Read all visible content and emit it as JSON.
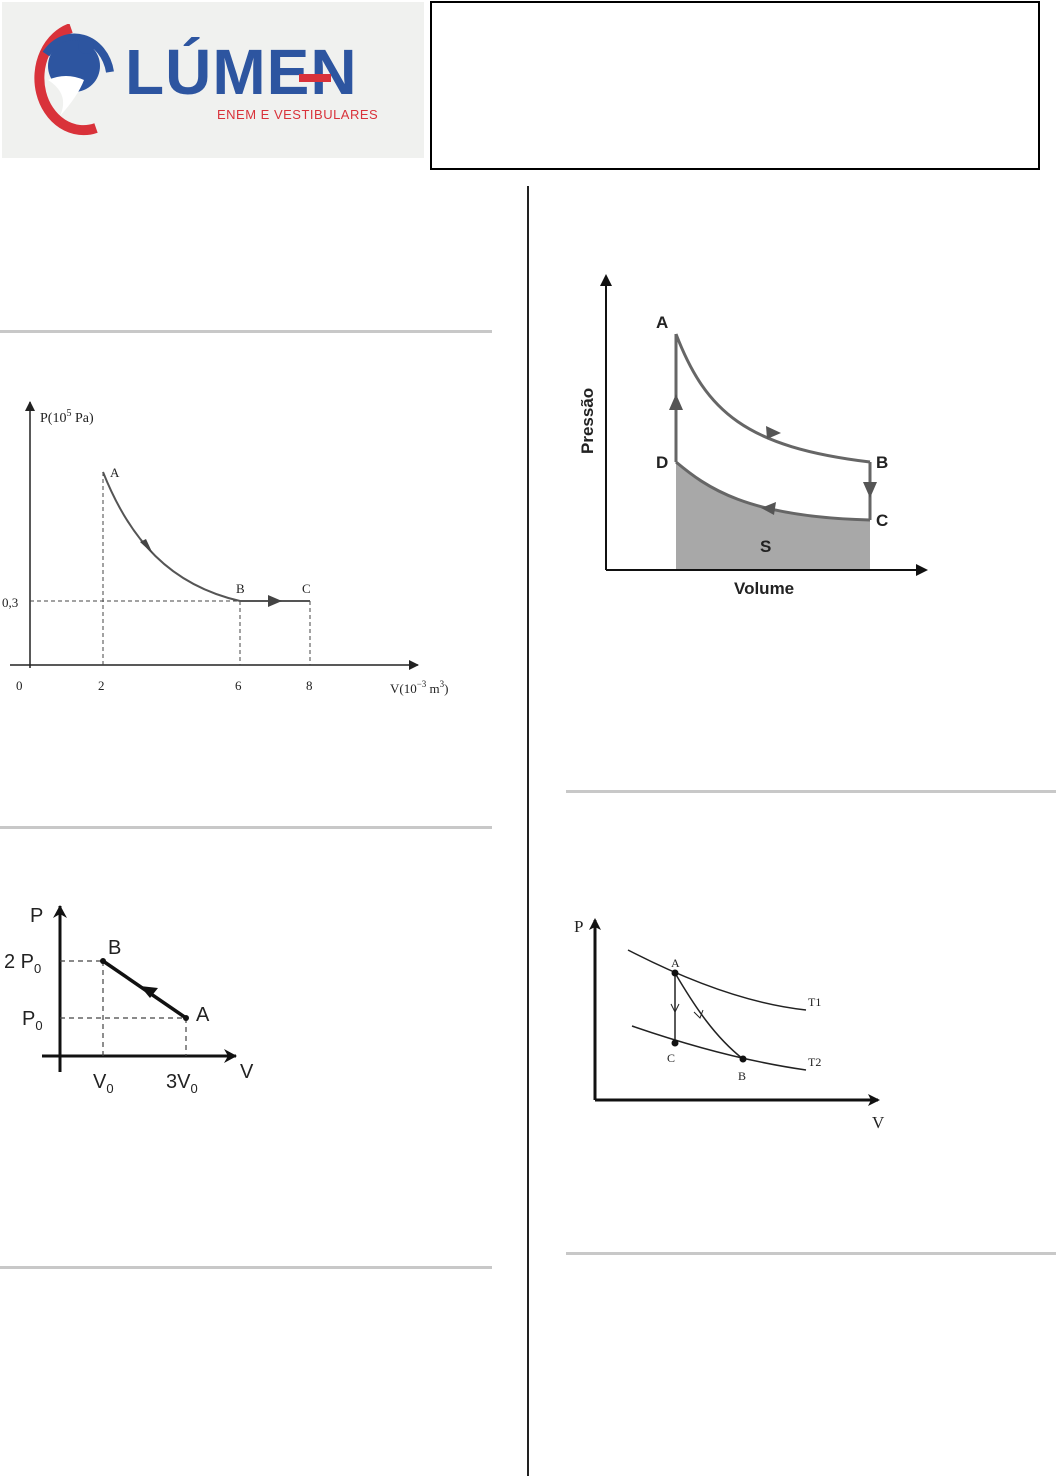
{
  "header": {
    "logo_word": "LÚMEN",
    "logo_tagline": "ENEM E VESTIBULARES",
    "brand_blue": "#2d55a0",
    "brand_red": "#d9323a"
  },
  "graph1": {
    "y_axis_label": "P(10",
    "y_axis_exp": "5",
    "y_axis_unit": " Pa)",
    "x_axis_label": "V(10",
    "x_axis_exp": "−3",
    "x_axis_unit": " m",
    "x_axis_unit_exp": "3",
    "x_axis_close": ")",
    "origin": "0",
    "x_ticks": [
      "2",
      "6",
      "8"
    ],
    "y_tick": "0,3",
    "points": [
      "A",
      "B",
      "C"
    ]
  },
  "graph2": {
    "y_axis": "P",
    "x_axis": "V",
    "y_tick_top_coef": "2 P",
    "y_tick_top_sub": "0",
    "y_tick_low": "P",
    "y_tick_low_sub": "0",
    "x_tick_left": "V",
    "x_tick_left_sub": "0",
    "x_tick_right_coef": "3V",
    "x_tick_right_sub": "0",
    "points": [
      "B",
      "A"
    ]
  },
  "graph3": {
    "y_axis": "Pressão",
    "x_axis": "Volume",
    "points": [
      "A",
      "B",
      "C",
      "D"
    ],
    "area_label": "S"
  },
  "graph4": {
    "y_axis": "P",
    "x_axis": "V",
    "points": [
      "A",
      "B",
      "C"
    ],
    "isotherms": [
      "T1",
      "T2"
    ]
  }
}
